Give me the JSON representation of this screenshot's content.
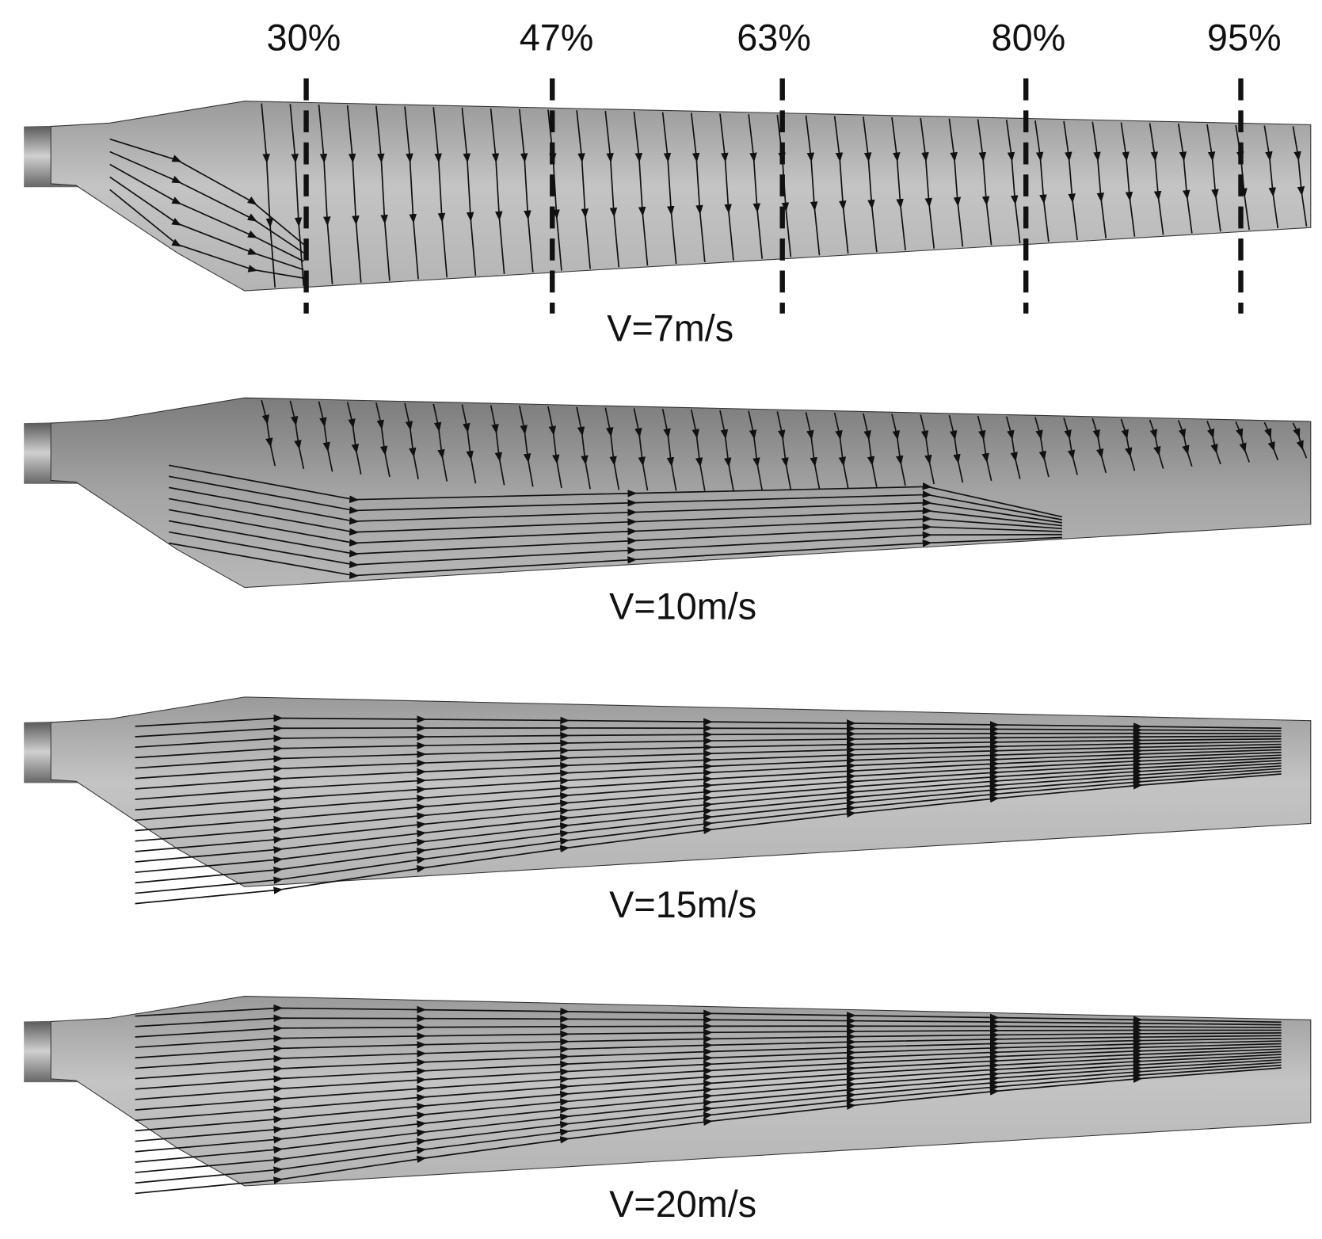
{
  "sections": [
    "30%",
    "47%",
    "63%",
    "80%",
    "95%"
  ],
  "panels": [
    {
      "label": "V=7m/s"
    },
    {
      "label": "V=10m/s"
    },
    {
      "label": "V=15m/s"
    },
    {
      "label": "V=20m/s"
    }
  ]
}
